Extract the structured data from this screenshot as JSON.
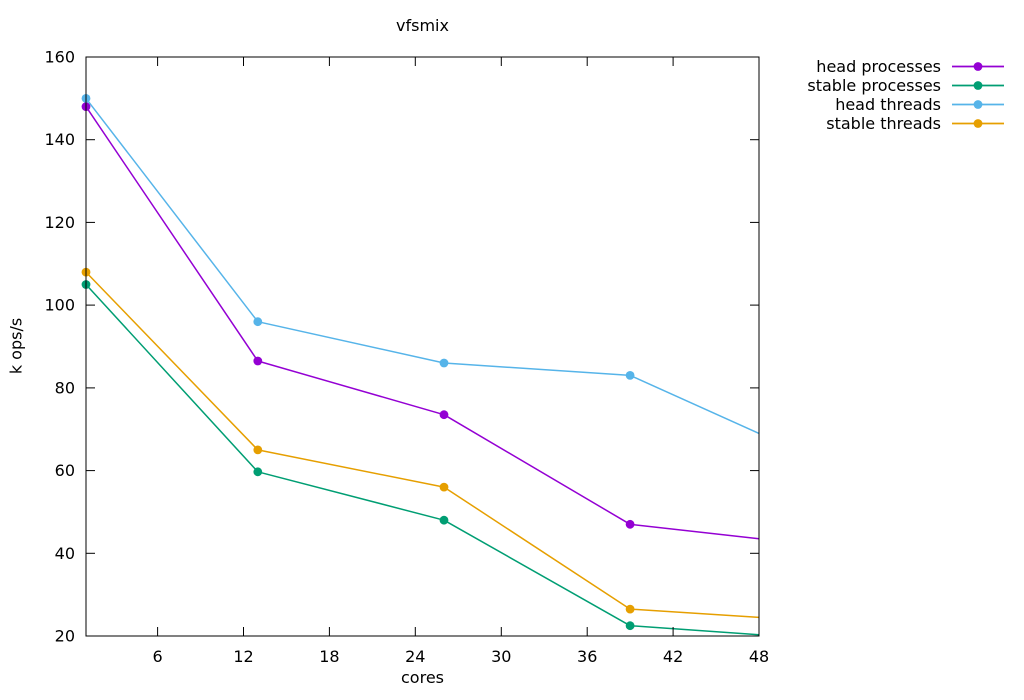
{
  "chart_data": {
    "type": "line",
    "title": "vfsmix",
    "xlabel": "cores",
    "ylabel": "k ops/s",
    "xlim": [
      1,
      48
    ],
    "ylim": [
      20,
      160
    ],
    "xticks": [
      6,
      12,
      18,
      24,
      30,
      36,
      42,
      48
    ],
    "yticks": [
      20,
      40,
      60,
      80,
      100,
      120,
      140,
      160
    ],
    "grid": false,
    "legend_position": "outside-top-right",
    "series": [
      {
        "name": "head processes",
        "color": "#9400d3",
        "x": [
          1,
          13,
          26,
          39,
          48
        ],
        "y": [
          148,
          86.5,
          73.5,
          47,
          43.5
        ],
        "markers": [
          true,
          true,
          true,
          true,
          false
        ]
      },
      {
        "name": "stable processes",
        "color": "#009e73",
        "x": [
          1,
          13,
          26,
          39,
          48
        ],
        "y": [
          105,
          59.7,
          48,
          22.5,
          20.3
        ],
        "markers": [
          true,
          true,
          true,
          true,
          false
        ]
      },
      {
        "name": "head threads",
        "color": "#56b4e9",
        "x": [
          1,
          13,
          26,
          39,
          48
        ],
        "y": [
          150,
          96,
          86,
          83,
          69
        ],
        "markers": [
          true,
          true,
          true,
          true,
          false
        ]
      },
      {
        "name": "stable threads",
        "color": "#e69f00",
        "x": [
          1,
          13,
          26,
          39,
          48
        ],
        "y": [
          108,
          65,
          56,
          26.5,
          24.5
        ],
        "markers": [
          true,
          true,
          true,
          true,
          false
        ]
      }
    ]
  }
}
